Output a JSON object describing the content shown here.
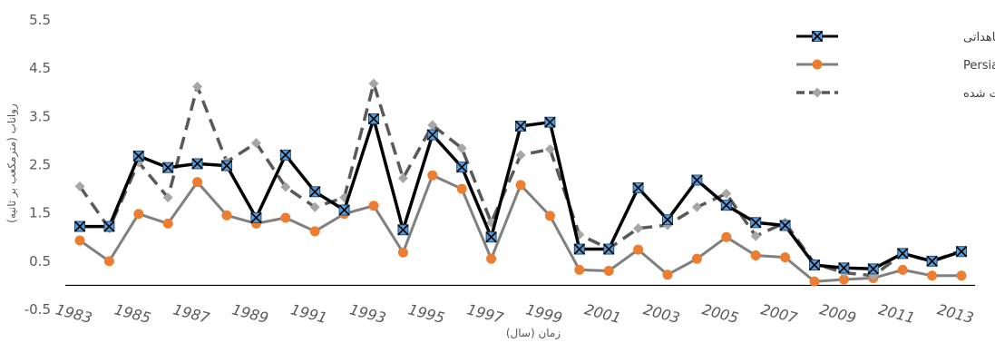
{
  "chart_data": {
    "type": "line",
    "title": "",
    "xlabel": "زمان (سال)",
    "ylabel": "رواناب (مترمکعب بر ثانیه)",
    "ylim": [
      -0.5,
      5.5
    ],
    "y_ticks": [
      -0.5,
      0.5,
      1.5,
      2.5,
      3.5,
      4.5,
      5.5
    ],
    "x_tick_labels": [
      "1983",
      "1985",
      "1987",
      "1989",
      "1991",
      "1993",
      "1995",
      "1997",
      "1999",
      "2001",
      "2003",
      "2005",
      "2007",
      "2009",
      "2011",
      "2013"
    ],
    "x": [
      1983,
      1984,
      1985,
      1986,
      1987,
      1988,
      1989,
      1990,
      1991,
      1992,
      1993,
      1994,
      1995,
      1996,
      1997,
      1998,
      1999,
      2000,
      2001,
      2002,
      2003,
      2004,
      2005,
      2006,
      2007,
      2008,
      2009,
      2010,
      2011,
      2012,
      2013
    ],
    "grid": false,
    "legend_position": "top-right",
    "series": [
      {
        "name": "پایگاه مشاهداتی",
        "color": "#000000",
        "marker": "square-x",
        "values": [
          1.22,
          1.22,
          2.68,
          2.44,
          2.52,
          2.48,
          1.4,
          2.7,
          1.94,
          1.56,
          3.45,
          1.15,
          3.12,
          2.45,
          1.0,
          3.3,
          3.38,
          0.75,
          0.75,
          2.02,
          1.36,
          2.18,
          1.66,
          1.3,
          1.24,
          0.42,
          0.36,
          0.34,
          0.66,
          0.5,
          0.7
        ]
      },
      {
        "name": "پایگاه Persiann-cdr",
        "color": "#808080",
        "marker": "circle",
        "values": [
          0.93,
          0.5,
          1.48,
          1.28,
          2.14,
          1.45,
          1.28,
          1.4,
          1.12,
          1.48,
          1.65,
          0.68,
          2.28,
          2.0,
          0.55,
          2.08,
          1.44,
          0.32,
          0.3,
          0.74,
          0.22,
          0.55,
          1.0,
          0.62,
          0.58,
          0.08,
          0.12,
          0.15,
          0.32,
          0.2,
          0.2
        ]
      },
      {
        "name": "رواناب ثبت شده",
        "color": "#595959",
        "marker": "diamond",
        "dash": true,
        "values": [
          2.05,
          1.18,
          2.55,
          1.82,
          4.12,
          2.56,
          2.95,
          2.04,
          1.62,
          1.82,
          4.18,
          2.22,
          3.32,
          2.84,
          1.3,
          2.7,
          2.82,
          1.05,
          0.76,
          1.18,
          1.25,
          1.62,
          1.9,
          1.02,
          1.3,
          0.45,
          0.26,
          0.2,
          0.65,
          0.5,
          0.72
        ]
      }
    ]
  }
}
